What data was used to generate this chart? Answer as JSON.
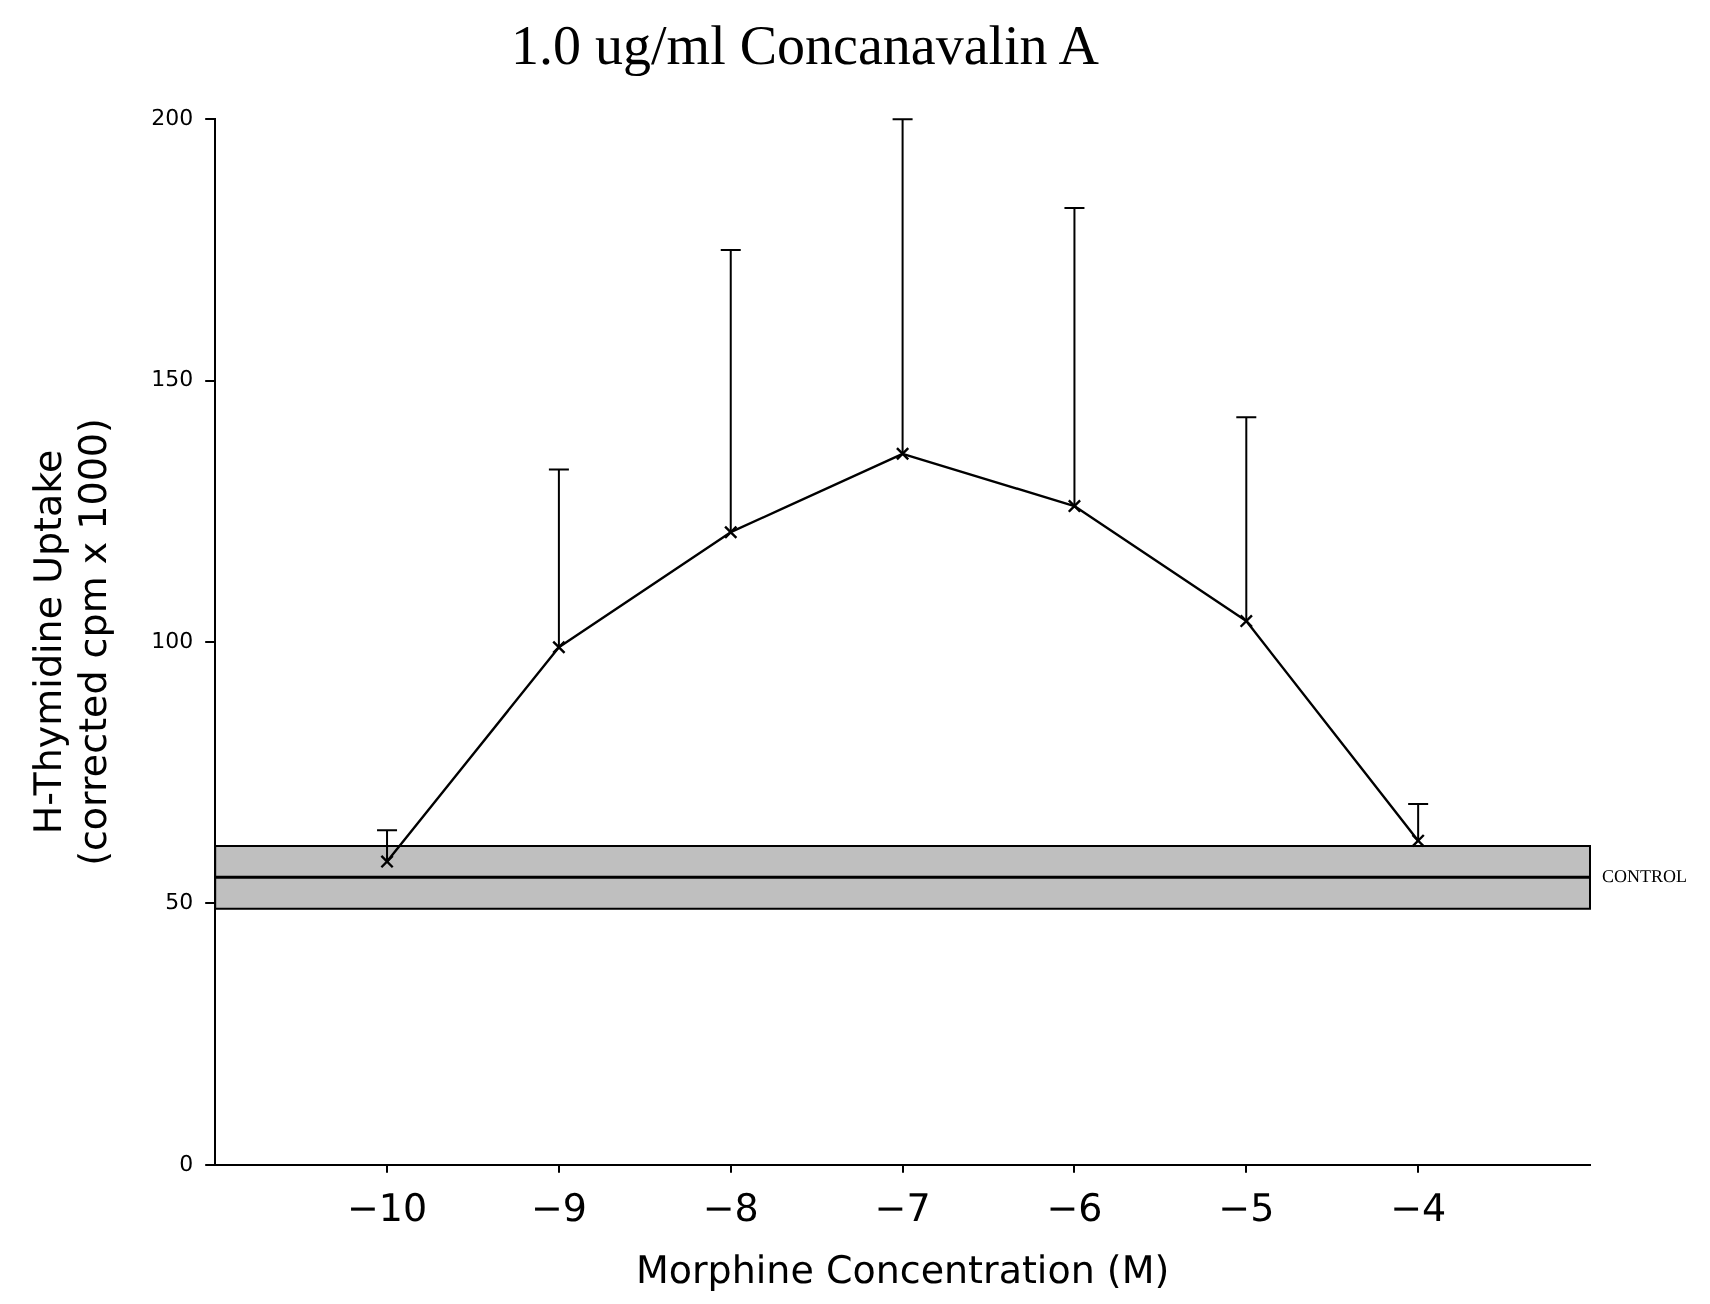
{
  "chart_data": {
    "type": "line",
    "title": "1.0 ug/ml Concanavalin A",
    "xlabel": "Morphine Concentration (M)",
    "ylabel": "H-Thymidine Uptake\n(corrected cpm x 1000)",
    "x": [
      -10,
      -9,
      -8,
      -7,
      -6,
      -5,
      -4
    ],
    "series": [
      {
        "color": "#000000",
        "values": [
          58,
          99,
          121,
          136,
          126,
          104,
          62
        ],
        "errors": [
          [
            58,
            64
          ],
          [
            99,
            133
          ],
          [
            121,
            175
          ],
          [
            136,
            200
          ],
          [
            126,
            183
          ],
          [
            104,
            143
          ],
          [
            62,
            69
          ]
        ]
      }
    ],
    "xlim": [
      -11,
      -3
    ],
    "xticks": [
      -10,
      -9,
      -8,
      -7,
      -6,
      -5,
      -4
    ],
    "ylim": [
      0,
      200
    ],
    "yticks": [
      0,
      50,
      100,
      150,
      200
    ],
    "ref_lines": [
      {
        "axis": "y",
        "value": 55,
        "label": "CONTROL",
        "color": "#000000"
      }
    ],
    "bands": [
      {
        "axis": "y",
        "from": 49,
        "to": 61,
        "color": "#000000"
      }
    ],
    "marker": "cross",
    "line_style": "solid",
    "grid": false,
    "legend": false
  }
}
